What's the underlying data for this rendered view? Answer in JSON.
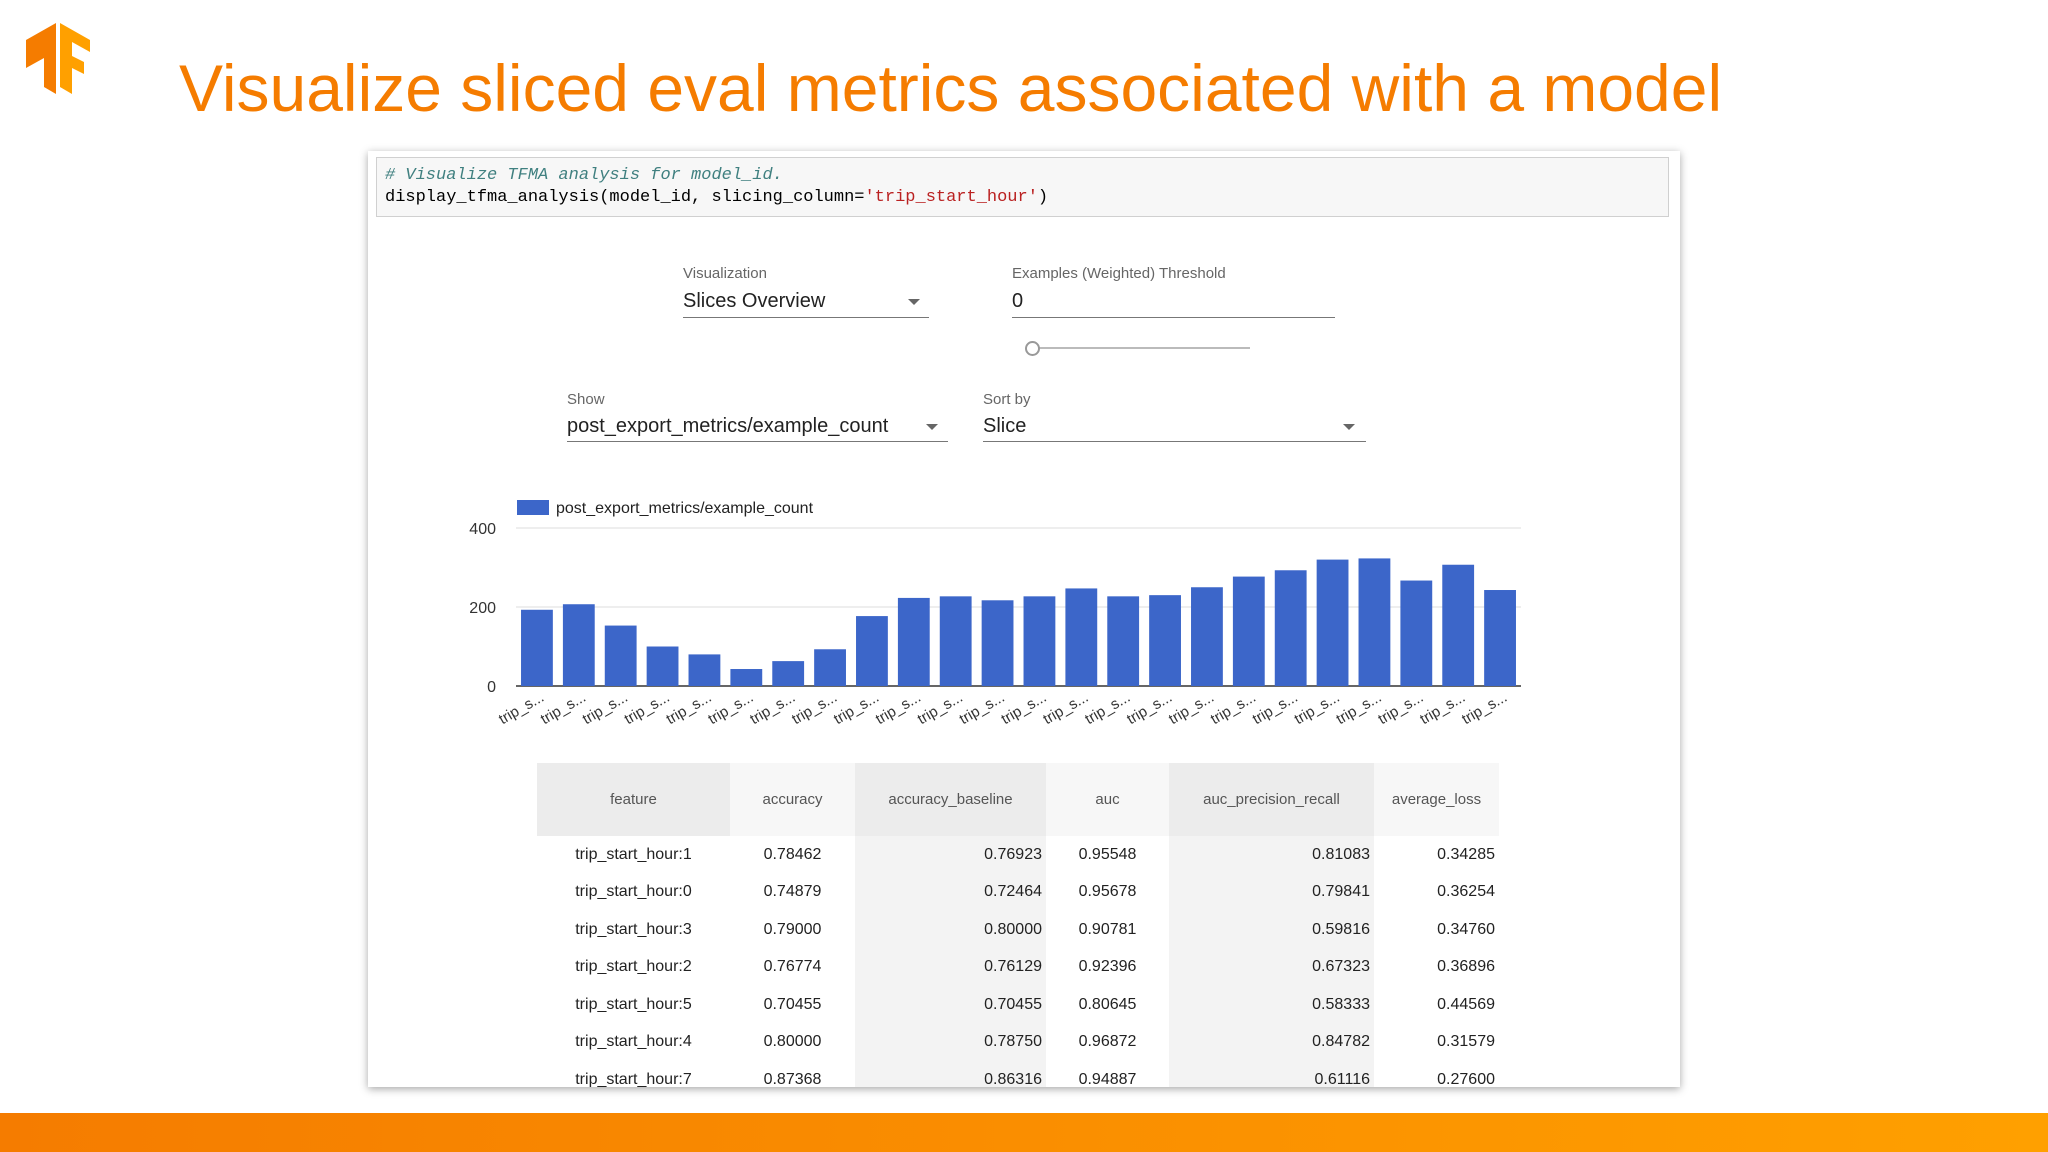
{
  "header": {
    "title": "Visualize sliced eval metrics associated with a model"
  },
  "code": {
    "comment": "# Visualize TFMA analysis for model_id.",
    "call_start": "display_tfma_analysis(model_id, slicing_column=",
    "call_string": "'trip_start_hour'",
    "call_end": ")"
  },
  "controls": {
    "visualization": {
      "label": "Visualization",
      "value": "Slices Overview"
    },
    "threshold": {
      "label": "Examples (Weighted) Threshold",
      "value": "0"
    },
    "show": {
      "label": "Show",
      "value": "post_export_metrics/example_count"
    },
    "sort_by": {
      "label": "Sort by",
      "value": "Slice"
    }
  },
  "chart_data": {
    "type": "bar",
    "categories": [
      "trip_s...",
      "trip_s...",
      "trip_s...",
      "trip_s...",
      "trip_s...",
      "trip_s...",
      "trip_s...",
      "trip_s...",
      "trip_s...",
      "trip_s...",
      "trip_s...",
      "trip_s...",
      "trip_s...",
      "trip_s...",
      "trip_s...",
      "trip_s...",
      "trip_s...",
      "trip_s...",
      "trip_s...",
      "trip_s...",
      "trip_s...",
      "trip_s...",
      "trip_s...",
      "trip_s..."
    ],
    "series": [
      {
        "name": "post_export_metrics/example_count",
        "color": "#3c66c9",
        "values": [
          193,
          207,
          153,
          100,
          80,
          43,
          63,
          93,
          177,
          223,
          227,
          217,
          227,
          247,
          227,
          230,
          250,
          277,
          293,
          320,
          323,
          267,
          307,
          243
        ]
      }
    ],
    "ylim": [
      0,
      400
    ],
    "yticks": [
      0,
      200,
      400
    ],
    "grid": true
  },
  "table": {
    "columns": [
      "feature",
      "accuracy",
      "accuracy_baseline",
      "auc",
      "auc_precision_recall",
      "average_loss"
    ],
    "rows": [
      [
        "trip_start_hour:1",
        "0.78462",
        "0.76923",
        "0.95548",
        "0.81083",
        "0.34285"
      ],
      [
        "trip_start_hour:0",
        "0.74879",
        "0.72464",
        "0.95678",
        "0.79841",
        "0.36254"
      ],
      [
        "trip_start_hour:3",
        "0.79000",
        "0.80000",
        "0.90781",
        "0.59816",
        "0.34760"
      ],
      [
        "trip_start_hour:2",
        "0.76774",
        "0.76129",
        "0.92396",
        "0.67323",
        "0.36896"
      ],
      [
        "trip_start_hour:5",
        "0.70455",
        "0.70455",
        "0.80645",
        "0.58333",
        "0.44569"
      ],
      [
        "trip_start_hour:4",
        "0.80000",
        "0.78750",
        "0.96872",
        "0.84782",
        "0.31579"
      ],
      [
        "trip_start_hour:7",
        "0.87368",
        "0.86316",
        "0.94887",
        "0.61116",
        "0.27600"
      ]
    ]
  }
}
